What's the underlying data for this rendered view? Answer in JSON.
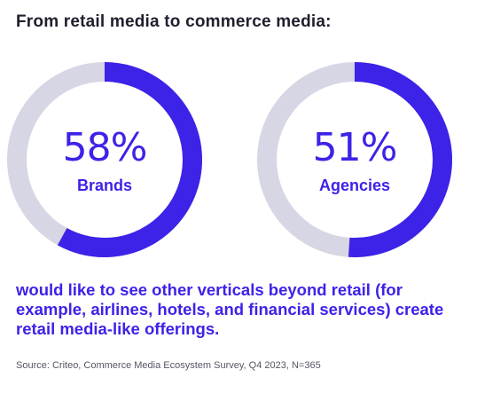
{
  "title": "From retail media to commerce media:",
  "caption": "would like to see other verticals beyond retail (for example, airlines, hotels, and financial services) create retail media-like offerings.",
  "source": "Source: Criteo, Commerce Media Ecosystem Survey, Q4 2023, N=365",
  "colors": {
    "accent": "#3d22e8",
    "track": "#d6d6e4",
    "title": "#1f1f2e"
  },
  "chart_data": [
    {
      "type": "pie",
      "variant": "donut",
      "label": "Brands",
      "value_label": "58%",
      "values": [
        58,
        42
      ],
      "max": 100
    },
    {
      "type": "pie",
      "variant": "donut",
      "label": "Agencies",
      "value_label": "51%",
      "values": [
        51,
        49
      ],
      "max": 100
    }
  ]
}
